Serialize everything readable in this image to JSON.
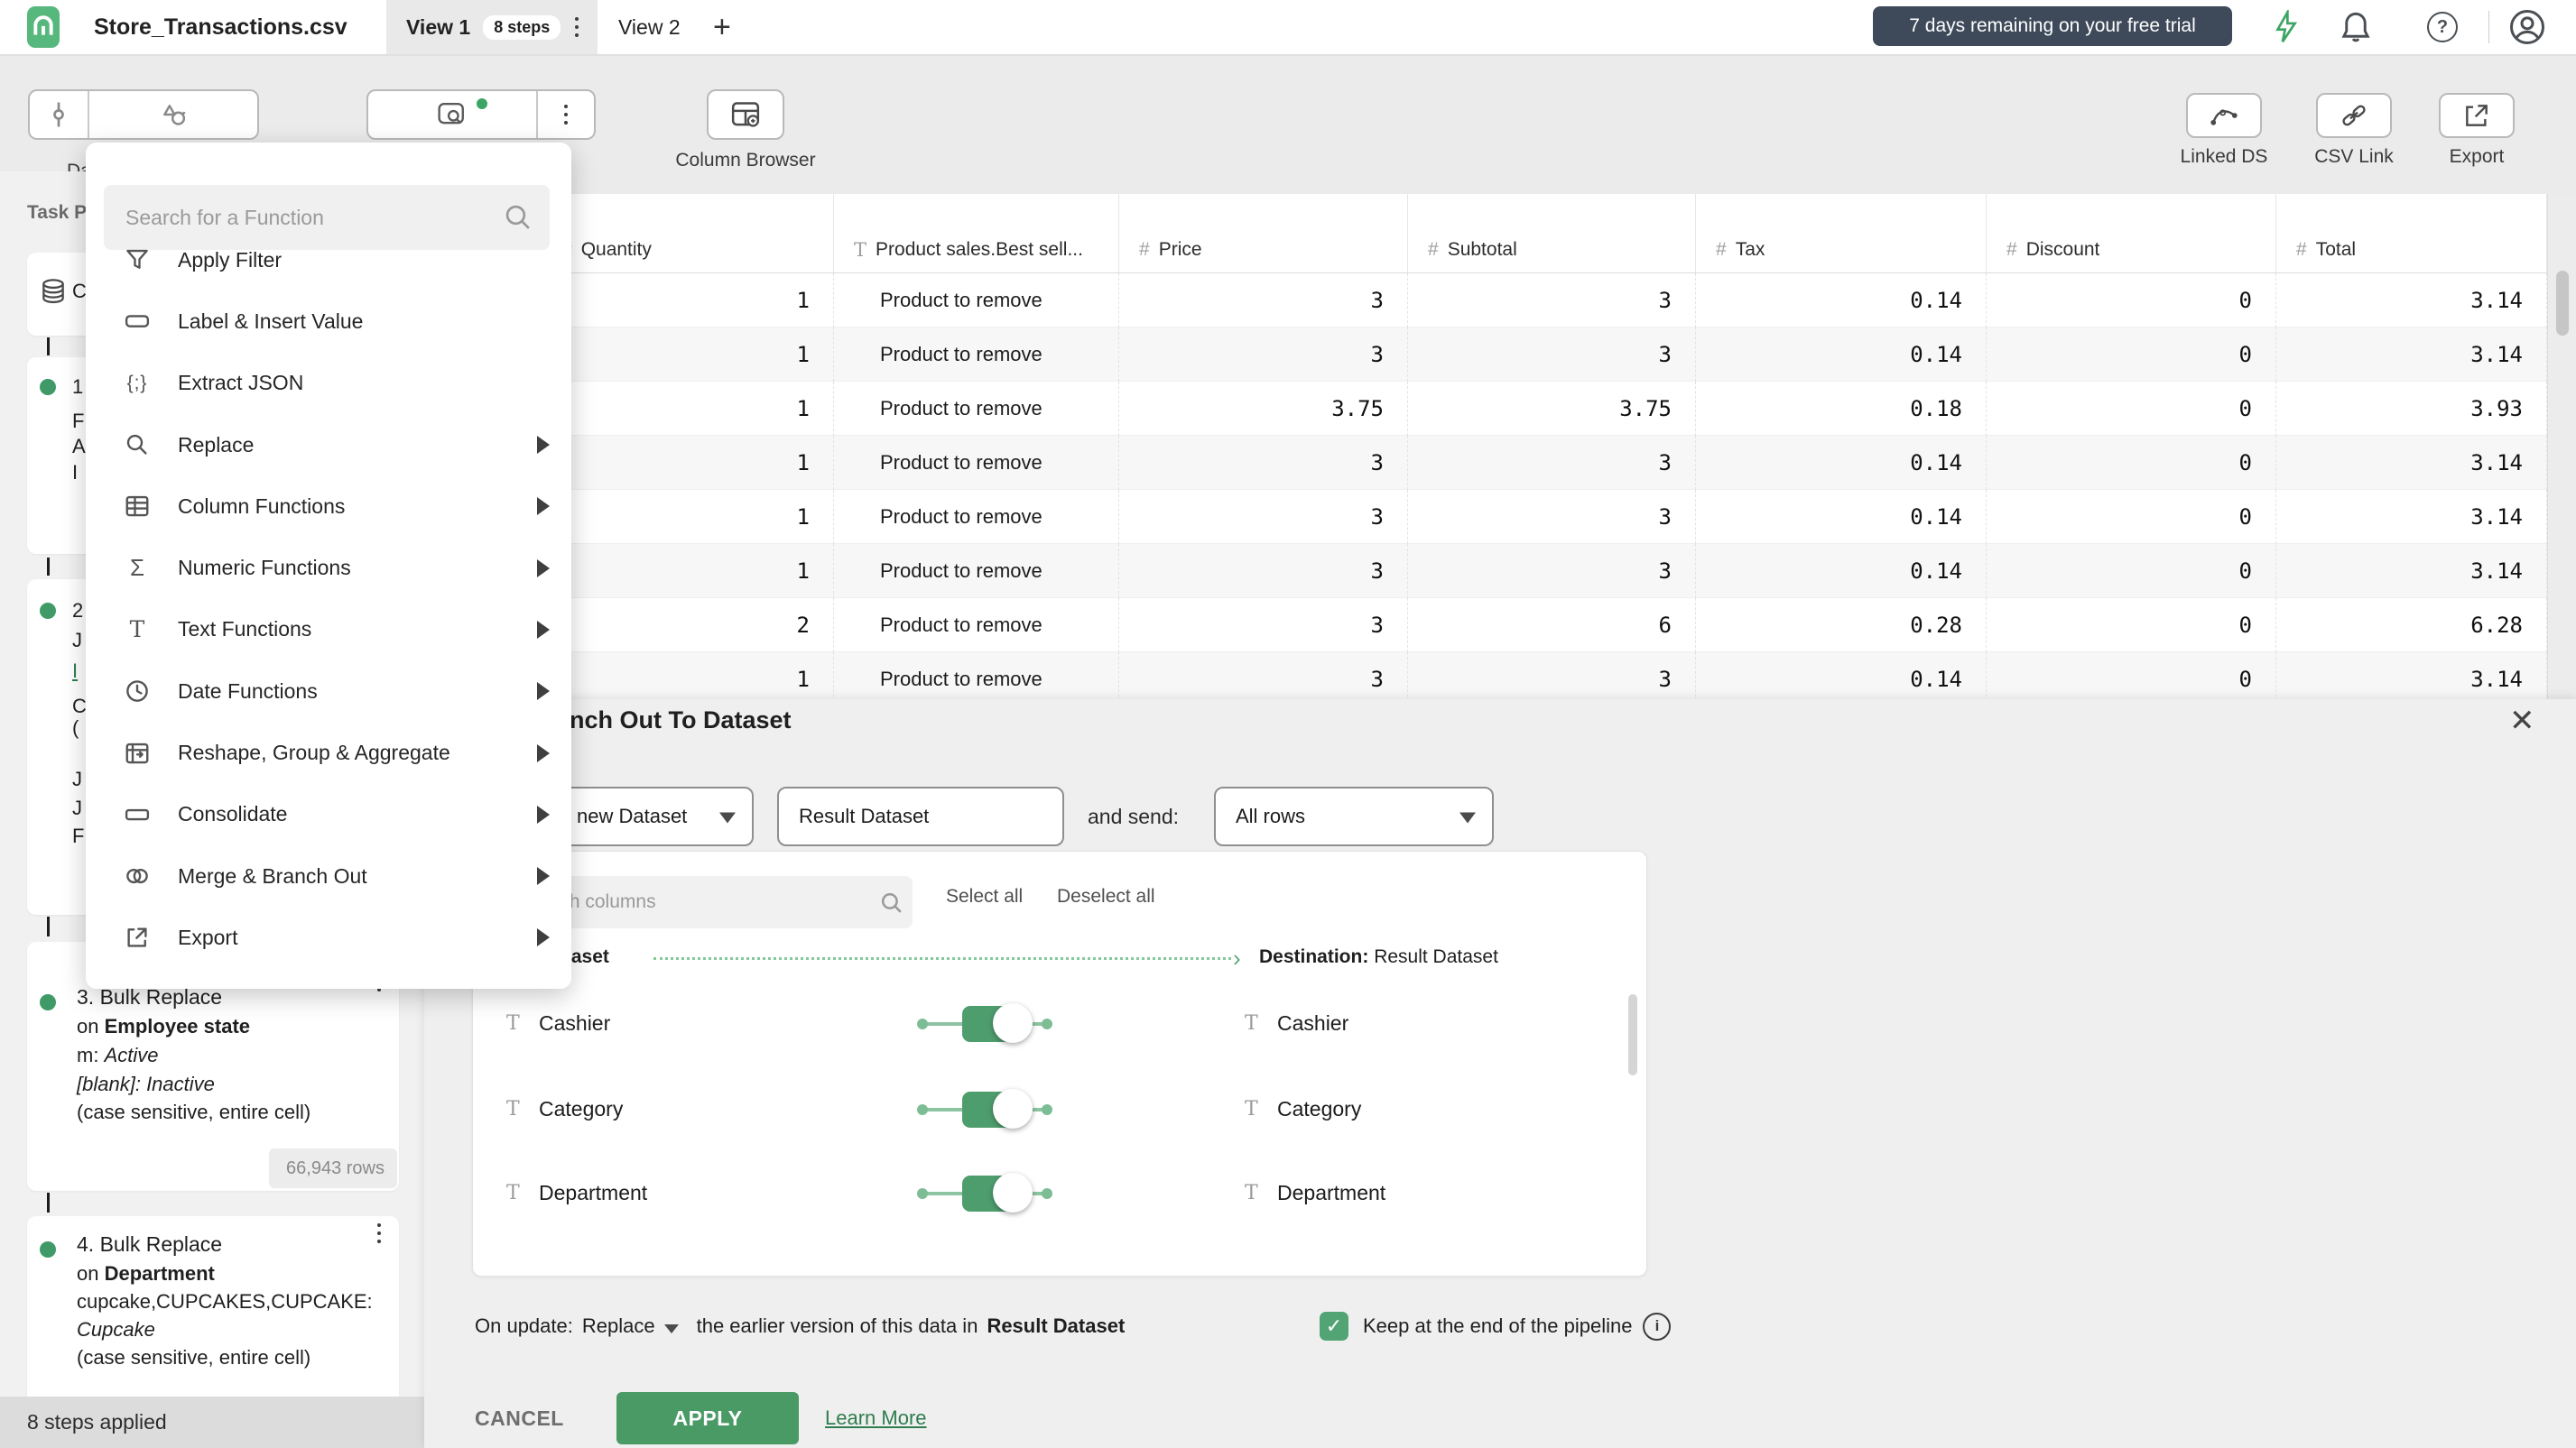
{
  "colors": {
    "brand_green": "#4a9a66",
    "logo_green": "#57b87e",
    "toggle_green": "#4e9d6d",
    "trial_badge_bg": "#3e4a5a",
    "link_green": "#2e7d4e",
    "app_bg": "#ebebeb",
    "dialog_bg": "#efefef",
    "pane_bg": "#f1f1f1",
    "status_bar_bg": "#dcdcdc"
  },
  "topbar": {
    "title": "Store_Transactions.csv",
    "tabs": [
      {
        "label": "View 1",
        "badge": "8 steps"
      },
      {
        "label": "View 2"
      }
    ],
    "new_tab_label": "+",
    "trial_text": "7 days remaining on your free trial"
  },
  "toolbar": {
    "left_label_fragment": "Da",
    "column_browser_label": "Column Browser",
    "linked_ds_label": "Linked DS",
    "csv_link_label": "CSV Link",
    "export_label": "Export"
  },
  "menu": {
    "search_placeholder": "Search for a Function",
    "items": [
      {
        "label": "Apply Filter",
        "icon": "funnel-icon",
        "submenu": false
      },
      {
        "label": "Label & Insert Value",
        "icon": "tag-icon",
        "submenu": false
      },
      {
        "label": "Extract JSON",
        "icon": "json-icon",
        "submenu": false
      },
      {
        "label": "Replace",
        "icon": "magnifier-icon",
        "submenu": true
      },
      {
        "label": "Column Functions",
        "icon": "columns-icon",
        "submenu": true
      },
      {
        "label": "Numeric Functions",
        "icon": "sigma-icon",
        "submenu": true
      },
      {
        "label": "Text Functions",
        "icon": "text-icon",
        "submenu": true
      },
      {
        "label": "Date Functions",
        "icon": "clock-icon",
        "submenu": true
      },
      {
        "label": "Reshape, Group & Aggregate",
        "icon": "reshape-icon",
        "submenu": true
      },
      {
        "label": "Consolidate",
        "icon": "consolidate-icon",
        "submenu": true
      },
      {
        "label": "Merge & Branch Out",
        "icon": "merge-icon",
        "submenu": true
      },
      {
        "label": "Export",
        "icon": "export-icon",
        "submenu": true
      }
    ]
  },
  "task_pane": {
    "title": "Task Pane",
    "status": "8 steps applied",
    "source_fragment": "C",
    "step1_fragments": [
      "1",
      "F",
      "A",
      "I"
    ],
    "step2_fragments": [
      "2",
      "J",
      "I",
      "C",
      "(",
      "J",
      "J",
      "F"
    ],
    "step3": {
      "title": "3. Bulk Replace",
      "on_prefix": "on",
      "column": "Employee state",
      "line1_prefix": "m:",
      "line1_value": "Active",
      "line2_prefix": "[blank]:",
      "line2_value": "Inactive",
      "note": "(case sensitive, entire cell)",
      "rows_badge": "66,943 rows"
    },
    "step4": {
      "title": "4. Bulk Replace",
      "on_prefix": "on",
      "column": "Department",
      "find": "cupcake,CUPCAKES,CUPCAKE:",
      "value": "Cupcake",
      "note": "(case sensitive, entire cell)"
    }
  },
  "table": {
    "columns": [
      {
        "name": "Quantity",
        "type": "number"
      },
      {
        "name": "Product sales.Best sell...",
        "type": "text"
      },
      {
        "name": "Price",
        "type": "number"
      },
      {
        "name": "Subtotal",
        "type": "number"
      },
      {
        "name": "Tax",
        "type": "number"
      },
      {
        "name": "Discount",
        "type": "number"
      },
      {
        "name": "Total",
        "type": "number"
      }
    ],
    "rows": [
      [
        "1",
        "Product to remove",
        "3",
        "3",
        "0.14",
        "0",
        "3.14"
      ],
      [
        "1",
        "Product to remove",
        "3",
        "3",
        "0.14",
        "0",
        "3.14"
      ],
      [
        "1",
        "Product to remove",
        "3.75",
        "3.75",
        "0.18",
        "0",
        "3.93"
      ],
      [
        "1",
        "Product to remove",
        "3",
        "3",
        "0.14",
        "0",
        "3.14"
      ],
      [
        "1",
        "Product to remove",
        "3",
        "3",
        "0.14",
        "0",
        "3.14"
      ],
      [
        "1",
        "Product to remove",
        "3",
        "3",
        "0.14",
        "0",
        "3.14"
      ],
      [
        "2",
        "Product to remove",
        "3",
        "6",
        "0.28",
        "0",
        "6.28"
      ],
      [
        "1",
        "Product to remove",
        "3",
        "3",
        "0.14",
        "0",
        "3.14"
      ]
    ]
  },
  "dialog": {
    "title": "Branch Out To Dataset",
    "dataset_select_value": "new Dataset",
    "dataset_name_value": "Result Dataset",
    "and_send_label": "and send:",
    "rows_select_value": "All rows",
    "columns_search_placeholder": "Search columns",
    "select_all_label": "Select all",
    "deselect_all_label": "Deselect all",
    "source_header": "Dataset",
    "destination_header": "Destination:",
    "destination_value": "Result Dataset",
    "mappings": [
      {
        "source": "Cashier",
        "destination": "Cashier",
        "enabled": true
      },
      {
        "source": "Category",
        "destination": "Category",
        "enabled": true
      },
      {
        "source": "Department",
        "destination": "Department",
        "enabled": true
      }
    ],
    "on_update_prefix": "On update:",
    "on_update_mode": "Replace",
    "on_update_middle": "the earlier version of this data in",
    "on_update_target": "Result Dataset",
    "keep_label": "Keep at the end of the pipeline",
    "keep_checked": true,
    "cancel_label": "CANCEL",
    "apply_label": "APPLY",
    "learn_more_label": "Learn More"
  }
}
